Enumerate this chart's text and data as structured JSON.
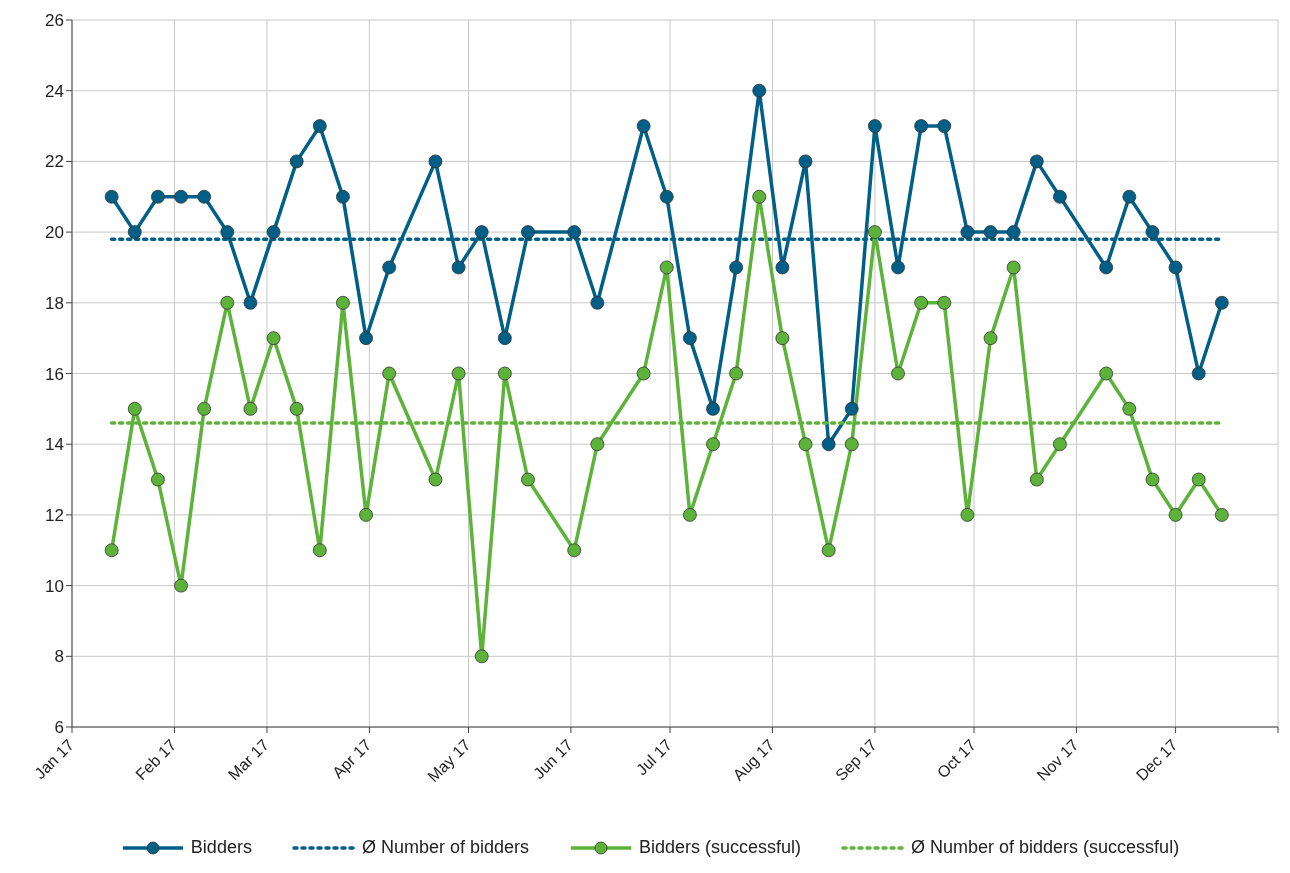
{
  "chart_data": {
    "type": "line",
    "xlim": [
      "2017-01-01",
      "2018-01-01"
    ],
    "xticks": [
      {
        "value": "2017-01-01",
        "label": "Jan 17"
      },
      {
        "value": "2017-02-01",
        "label": "Feb 17"
      },
      {
        "value": "2017-03-01",
        "label": "Mar 17"
      },
      {
        "value": "2017-04-01",
        "label": "Apr 17"
      },
      {
        "value": "2017-05-01",
        "label": "May 17"
      },
      {
        "value": "2017-06-01",
        "label": "Jun 17"
      },
      {
        "value": "2017-07-01",
        "label": "Jul 17"
      },
      {
        "value": "2017-08-01",
        "label": "Aug 17"
      },
      {
        "value": "2017-09-01",
        "label": "Sep 17"
      },
      {
        "value": "2017-10-01",
        "label": "Oct 17"
      },
      {
        "value": "2017-11-01",
        "label": "Nov 17"
      },
      {
        "value": "2017-12-01",
        "label": "Dec 17"
      },
      {
        "value": "2018-01-01",
        "label": null
      }
    ],
    "ylim": [
      6,
      26
    ],
    "yticks": [
      6,
      8,
      10,
      12,
      14,
      16,
      18,
      20,
      22,
      24,
      26
    ],
    "grid": true,
    "legend": "bottom",
    "marker": "circle",
    "line_style": "solid",
    "x": [
      "2017-01-13",
      "2017-01-20",
      "2017-01-27",
      "2017-02-03",
      "2017-02-10",
      "2017-02-17",
      "2017-02-24",
      "2017-03-03",
      "2017-03-10",
      "2017-03-17",
      "2017-03-24",
      "2017-03-31",
      "2017-04-07",
      "2017-04-21",
      "2017-04-28",
      "2017-05-05",
      "2017-05-12",
      "2017-05-19",
      "2017-06-02",
      "2017-06-09",
      "2017-06-23",
      "2017-06-30",
      "2017-07-07",
      "2017-07-14",
      "2017-07-21",
      "2017-07-28",
      "2017-08-04",
      "2017-08-11",
      "2017-08-18",
      "2017-08-25",
      "2017-09-01",
      "2017-09-08",
      "2017-09-15",
      "2017-09-22",
      "2017-09-29",
      "2017-10-06",
      "2017-10-13",
      "2017-10-20",
      "2017-10-27",
      "2017-11-10",
      "2017-11-17",
      "2017-11-24",
      "2017-12-01",
      "2017-12-08",
      "2017-12-15"
    ],
    "series": [
      {
        "name": "Bidders",
        "color": "#005f87",
        "values": [
          21,
          20,
          21,
          21,
          21,
          20,
          18,
          20,
          22,
          23,
          21,
          17,
          19,
          22,
          19,
          20,
          17,
          20,
          20,
          18,
          23,
          21,
          17,
          15,
          19,
          24,
          19,
          22,
          14,
          15,
          23,
          19,
          23,
          23,
          20,
          20,
          20,
          22,
          21,
          19,
          21,
          20,
          19,
          16,
          18
        ]
      },
      {
        "name": "Ø Number of bidders",
        "color": "#005f87",
        "line_style": "dotted",
        "marker": "none",
        "x": [
          "2017-01-13",
          "2017-12-15"
        ],
        "values": [
          19.8,
          19.8
        ]
      },
      {
        "name": "Bidders (successful)",
        "color": "#5db33a",
        "values": [
          11,
          15,
          13,
          10,
          15,
          18,
          15,
          17,
          15,
          11,
          18,
          12,
          16,
          13,
          16,
          8,
          16,
          13,
          11,
          14,
          16,
          19,
          12,
          14,
          16,
          21,
          17,
          14,
          11,
          14,
          20,
          16,
          18,
          18,
          12,
          17,
          19,
          13,
          14,
          16,
          15,
          13,
          12,
          13,
          12
        ]
      },
      {
        "name": "Ø Number of bidders (successful)",
        "color": "#5db33a",
        "line_style": "dotted",
        "marker": "none",
        "x": [
          "2017-01-13",
          "2017-12-15"
        ],
        "values": [
          14.6,
          14.6
        ]
      }
    ]
  }
}
